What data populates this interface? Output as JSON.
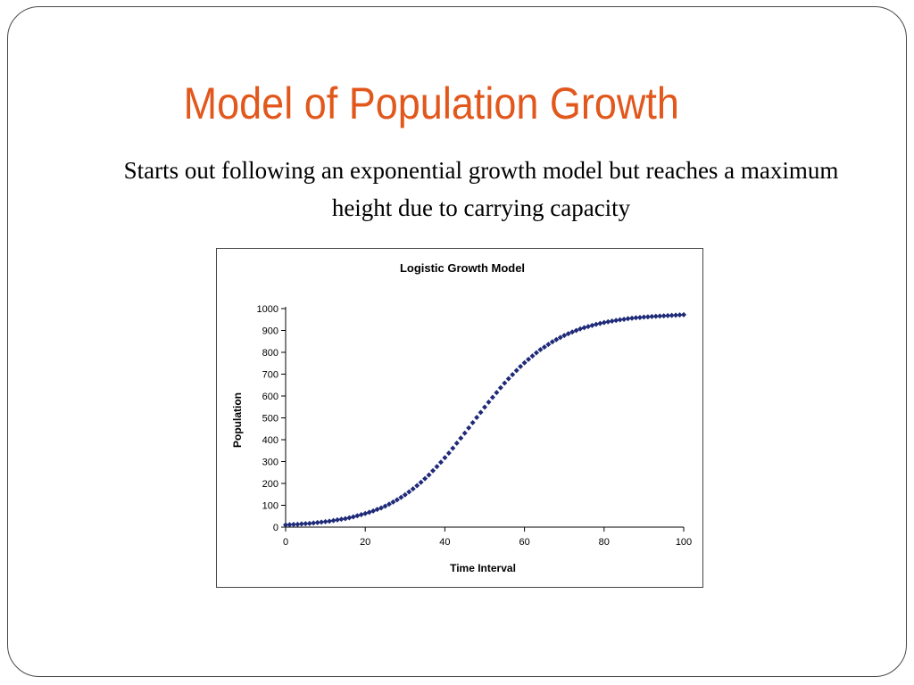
{
  "slide": {
    "title": "Model of Population Growth",
    "subtitle": "Starts out following an exponential growth model but reaches a maximum height due to carrying capacity",
    "title_color": "#e2571c"
  },
  "chart_data": {
    "type": "scatter",
    "title": "Logistic Growth Model",
    "xlabel": "Time Interval",
    "ylabel": "Population",
    "xlim": [
      0,
      100
    ],
    "ylim": [
      0,
      1000
    ],
    "x_ticks": [
      0,
      20,
      40,
      60,
      80,
      100
    ],
    "y_ticks": [
      0,
      100,
      200,
      300,
      400,
      500,
      600,
      700,
      800,
      900,
      1000
    ],
    "grid": false,
    "legend": "none",
    "marker": "diamond",
    "series_color": "#1f2a78",
    "series": [
      {
        "x": [
          0,
          1,
          2,
          3,
          4,
          5,
          6,
          7,
          8,
          9,
          10,
          11,
          12,
          13,
          14,
          15,
          16,
          17,
          18,
          19,
          20,
          21,
          22,
          23,
          24,
          25,
          26,
          27,
          28,
          29,
          30,
          31,
          32,
          33,
          34,
          35,
          36,
          37,
          38,
          39,
          40,
          41,
          42,
          43,
          44,
          45,
          46,
          47,
          48,
          49,
          50,
          51,
          52,
          53,
          54,
          55,
          56,
          57,
          58,
          59,
          60,
          61,
          62,
          63,
          64,
          65,
          66,
          67,
          68,
          69,
          70,
          71,
          72,
          73,
          74,
          75,
          76,
          77,
          78,
          79,
          80,
          81,
          82,
          83,
          84,
          85,
          86,
          87,
          88,
          89,
          90,
          91,
          92,
          93,
          94,
          95,
          96,
          97,
          98,
          99,
          100
        ],
        "values": [
          10,
          11,
          12,
          13,
          15,
          16,
          17,
          19,
          21,
          23,
          25,
          27,
          30,
          33,
          36,
          39,
          43,
          47,
          52,
          57,
          62,
          68,
          74,
          81,
          88,
          96,
          105,
          115,
          125,
          136,
          148,
          161,
          175,
          190,
          205,
          222,
          239,
          258,
          277,
          297,
          318,
          339,
          361,
          384,
          407,
          430,
          454,
          478,
          502,
          525,
          549,
          572,
          594,
          616,
          638,
          659,
          679,
          698,
          717,
          735,
          752,
          768,
          783,
          798,
          812,
          824,
          836,
          848,
          858,
          868,
          877,
          885,
          893,
          900,
          907,
          913,
          918,
          923,
          928,
          932,
          936,
          940,
          943,
          946,
          949,
          951,
          954,
          956,
          958,
          959,
          961,
          962,
          964,
          965,
          966,
          967,
          968,
          969,
          970,
          971,
          972
        ]
      }
    ]
  }
}
